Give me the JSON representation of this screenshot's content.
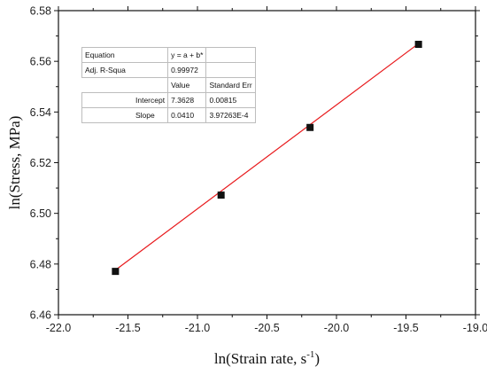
{
  "chart_data": {
    "type": "scatter",
    "title": "",
    "xlabel": "ln(Strain rate, s",
    "xlabel_sup": "-1",
    "xlabel_close": ")",
    "ylabel": "ln(Stress, MPa)",
    "xlim": [
      -22.0,
      -19.0
    ],
    "ylim": [
      6.46,
      6.58
    ],
    "x_ticks": [
      "-22.0",
      "-21.5",
      "-21.0",
      "-20.5",
      "-20.0",
      "-19.5",
      "-19.0"
    ],
    "y_ticks": [
      "6.46",
      "6.48",
      "6.50",
      "6.52",
      "6.54",
      "6.56",
      "6.58"
    ],
    "points": [
      {
        "x": -21.59,
        "y": 6.4771
      },
      {
        "x": -20.83,
        "y": 6.5072
      },
      {
        "x": -20.19,
        "y": 6.5339
      },
      {
        "x": -19.41,
        "y": 6.5667
      }
    ],
    "fit_line": {
      "x_start": -21.59,
      "x_end": -19.41,
      "intercept": 7.3628,
      "slope": 0.041
    },
    "marker_color": "#111111",
    "line_color": "#e8191c",
    "fit_table": {
      "equation_label": "Equation",
      "equation": "y = a + b*",
      "adj_r_label": "Adj. R-Squa",
      "adj_r_value": "0.99972",
      "value_header": "Value",
      "stderr_header": "Standard Err",
      "intercept_label": "Intercept",
      "intercept_value": "7.3628",
      "intercept_err": "0.00815",
      "slope_label": "Slope",
      "slope_value": "0.0410",
      "slope_err": "3.97263E-4"
    }
  }
}
